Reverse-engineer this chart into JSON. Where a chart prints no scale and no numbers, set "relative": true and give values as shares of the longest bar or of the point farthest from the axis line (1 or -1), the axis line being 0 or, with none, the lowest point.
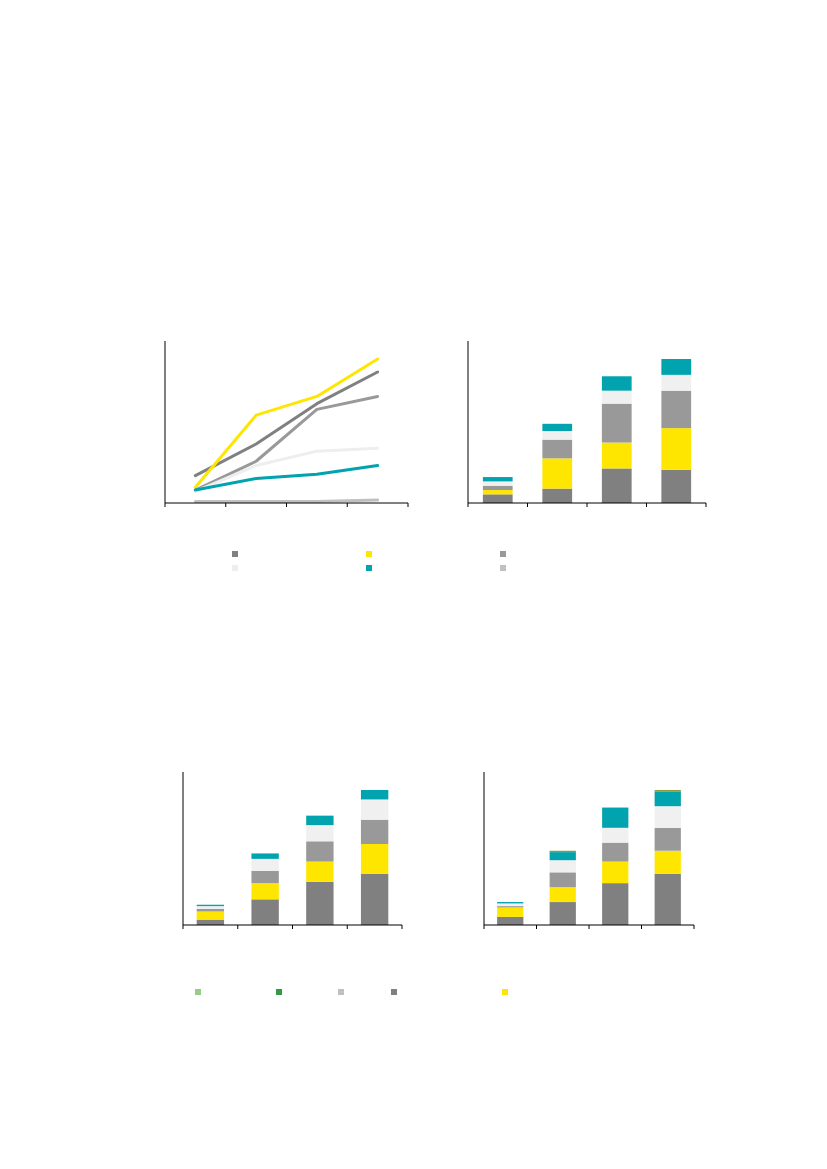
{
  "chart_data": [
    {
      "type": "line",
      "relative": true,
      "categories": [
        null,
        null,
        null,
        null
      ],
      "line_style": "solid",
      "marker": "none",
      "series": [
        {
          "color": "#808080",
          "values": [
            0.19,
            0.41,
            0.69,
            0.91
          ]
        },
        {
          "color": "#ffe600",
          "values": [
            0.11,
            0.61,
            0.74,
            1
          ]
        },
        {
          "color": "#999999",
          "values": [
            0.09,
            0.29,
            0.65,
            0.74
          ]
        },
        {
          "color": "#eeeeee",
          "values": [
            0.08,
            0.26,
            0.36,
            0.38
          ]
        },
        {
          "color": "#00a3ae",
          "values": [
            0.09,
            0.17,
            0.2,
            0.26
          ]
        },
        {
          "color": "#c0c0c0",
          "values": [
            0.01,
            0.01,
            0.01,
            0.02
          ]
        }
      ]
    },
    {
      "type": "bar",
      "stacked": true,
      "relative": true,
      "categories": [
        null,
        null,
        null,
        null
      ],
      "series": [
        {
          "color": "#808080",
          "values": [
            0.06,
            0.1,
            0.24,
            0.23
          ]
        },
        {
          "color": "#ffe600",
          "values": [
            0.03,
            0.21,
            0.18,
            0.29
          ]
        },
        {
          "color": "#999999",
          "values": [
            0.03,
            0.13,
            0.27,
            0.26
          ]
        },
        {
          "color": "#f0f0f0",
          "values": [
            0.03,
            0.06,
            0.09,
            0.11
          ]
        },
        {
          "color": "#00a3ae",
          "values": [
            0.03,
            0.05,
            0.1,
            0.11
          ]
        }
      ]
    },
    {
      "type": "bar",
      "stacked": true,
      "relative": true,
      "categories": [
        null,
        null,
        null,
        null
      ],
      "series": [
        {
          "color": "#808080",
          "values": [
            0.04,
            0.19,
            0.32,
            0.38
          ]
        },
        {
          "color": "#ffe600",
          "values": [
            0.06,
            0.12,
            0.15,
            0.22
          ]
        },
        {
          "color": "#999999",
          "values": [
            0.02,
            0.09,
            0.15,
            0.18
          ]
        },
        {
          "color": "#f0f0f0",
          "values": [
            0.02,
            0.09,
            0.12,
            0.15
          ]
        },
        {
          "color": "#00a3ae",
          "values": [
            0.01,
            0.04,
            0.07,
            0.07
          ]
        }
      ]
    },
    {
      "type": "bar",
      "stacked": true,
      "relative": true,
      "categories": [
        null,
        null,
        null,
        null
      ],
      "series": [
        {
          "color": "#808080",
          "values": [
            0.06,
            0.17,
            0.31,
            0.38
          ]
        },
        {
          "color": "#ffe600",
          "values": [
            0.07,
            0.11,
            0.16,
            0.17
          ]
        },
        {
          "color": "#999999",
          "values": [
            0.01,
            0.11,
            0.14,
            0.17
          ]
        },
        {
          "color": "#f0f0f0",
          "values": [
            0.02,
            0.09,
            0.11,
            0.16
          ]
        },
        {
          "color": "#00a3ae",
          "values": [
            0.01,
            0.06,
            0.15,
            0.11
          ]
        },
        {
          "color": "#8a9a3a",
          "values": [
            0,
            0.01,
            0,
            0.01
          ]
        }
      ]
    }
  ]
}
